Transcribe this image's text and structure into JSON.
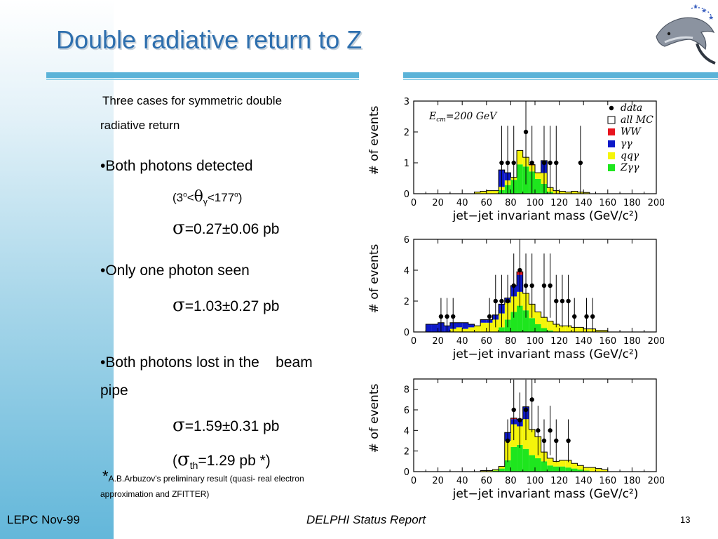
{
  "title": "Double radiative return to Z",
  "body": {
    "intro_line1": "Three cases for symmetric double",
    "intro_line2": "radiative return",
    "case1": "•Both photons detected",
    "case1_range_prefix": "(3",
    "case1_range_deg": "o",
    "case1_range_lt": "<",
    "case1_theta": "θ",
    "case1_gamma": "γ",
    "case1_range_mid": "<177",
    "case1_range_deg2": "o",
    "case1_range_suffix": ")",
    "sigma": "σ",
    "pm": "±",
    "case1_xs_a": "=0.27",
    "case1_xs_b": "0.06 pb",
    "case2": "•Only one photon seen",
    "case2_xs_a": "=1.03",
    "case2_xs_b": "0.27 pb",
    "case3_line1": "•Both photons lost in the    beam",
    "case3_line2": "pipe",
    "case3_xs_a": "=1.59",
    "case3_xs_b": "0.31 pb",
    "theory_open": "(",
    "theory_sub": "th",
    "theory_value": "=1.29 pb *)",
    "footnote_star": "*",
    "footnote_line1": "A.B.Arbuzov's preliminary result (quasi- real electron",
    "footnote_line2": "approximation and ZFITTER)"
  },
  "footer": {
    "left": "LEPC Nov-99",
    "center": "DELPHI Status Report",
    "page": "13"
  },
  "colors": {
    "title": "#2e6fae",
    "rule": "#5bb3d8",
    "ww": "#e8141e",
    "gg": "#0d19c8",
    "qqg": "#f5f50a",
    "zgg": "#1ee61e"
  },
  "chart_data": [
    {
      "type": "bar",
      "stacked": true,
      "annotation": "E_cm=200 GeV",
      "annotation_parts": {
        "main": "E",
        "sub": "cm",
        "rest": "=200 GeV"
      },
      "xlabel": "jet−jet invariant mass (GeV/c²)",
      "ylabel": "# of events",
      "xlim": [
        0,
        200
      ],
      "ylim": [
        0,
        3
      ],
      "xticks": [
        "0",
        "20",
        "40",
        "60",
        "80",
        "100",
        "120",
        "140",
        "160",
        "180",
        "200"
      ],
      "yticks": [
        "0",
        "1",
        "2",
        "3"
      ],
      "bin_width": 5,
      "x": [
        45,
        50,
        55,
        60,
        65,
        70,
        75,
        80,
        85,
        90,
        95,
        100,
        105,
        110,
        115,
        120,
        125,
        130,
        135,
        140
      ],
      "series": [
        {
          "name": "Zγγ",
          "color": "#1ee61e",
          "values": [
            0,
            0,
            0,
            0,
            0,
            0.12,
            0.28,
            0.45,
            0.95,
            0.88,
            0.72,
            0.48,
            0.32,
            0.06,
            0,
            0,
            0,
            0,
            0,
            0
          ]
        },
        {
          "name": "qqγ",
          "color": "#f5f50a",
          "values": [
            0,
            0.05,
            0.08,
            0.1,
            0.1,
            0.1,
            0.15,
            0.08,
            0.45,
            0.3,
            0.2,
            0.2,
            0.35,
            0.14,
            0.1,
            0.08,
            0.05,
            0.08,
            0.05,
            0.04
          ]
        },
        {
          "name": "γγ",
          "color": "#0d19c8",
          "values": [
            0,
            0,
            0,
            0,
            0,
            0.55,
            0.25,
            0,
            0,
            0,
            0,
            0,
            0.4,
            0,
            0,
            0,
            0,
            0,
            0,
            0
          ]
        },
        {
          "name": "WW",
          "color": "#e8141e",
          "values": [
            0,
            0,
            0,
            0,
            0,
            0,
            0,
            0,
            0,
            0,
            0.02,
            0,
            0,
            0,
            0,
            0,
            0,
            0,
            0,
            0
          ]
        }
      ],
      "data_points": [
        [
          70,
          1
        ],
        [
          75,
          1
        ],
        [
          80,
          1
        ],
        [
          90,
          2
        ],
        [
          95,
          1
        ],
        [
          105,
          1
        ],
        [
          110,
          1
        ],
        [
          115,
          1
        ],
        [
          135,
          1
        ]
      ],
      "legend": [
        {
          "label": "data",
          "marker": "dot"
        },
        {
          "label": "all MC",
          "marker": "box"
        },
        {
          "label": "WW",
          "marker": "red"
        },
        {
          "label": "γγ",
          "marker": "blue"
        },
        {
          "label": "qqγ",
          "marker": "yellow"
        },
        {
          "label": "Zγγ",
          "marker": "green"
        }
      ],
      "legend_placement": "top-right"
    },
    {
      "type": "bar",
      "stacked": true,
      "xlabel": "jet−jet invariant mass (GeV/c²)",
      "ylabel": "# of events",
      "xlim": [
        0,
        200
      ],
      "ylim": [
        0,
        6
      ],
      "xticks": [
        "0",
        "20",
        "40",
        "60",
        "80",
        "100",
        "120",
        "140",
        "160",
        "180",
        "200"
      ],
      "yticks": [
        "0",
        "2",
        "4",
        "6"
      ],
      "bin_width": 5,
      "x": [
        10,
        15,
        20,
        25,
        30,
        35,
        40,
        45,
        50,
        55,
        60,
        65,
        70,
        75,
        80,
        85,
        90,
        95,
        100,
        105,
        110,
        115,
        120,
        125,
        130,
        135,
        140,
        145,
        150,
        155
      ],
      "series": [
        {
          "name": "Zγγ",
          "color": "#1ee61e",
          "values": [
            0,
            0,
            0,
            0,
            0,
            0,
            0,
            0,
            0,
            0,
            0,
            0,
            0.3,
            0.8,
            1.3,
            1.7,
            1.4,
            0.9,
            0.5,
            0.25,
            0.1,
            0,
            0,
            0,
            0,
            0,
            0,
            0,
            0,
            0
          ]
        },
        {
          "name": "qqγ",
          "color": "#f5f50a",
          "values": [
            0,
            0,
            0,
            0,
            0.2,
            0.3,
            0.2,
            0.3,
            0.4,
            0.6,
            0.6,
            0.8,
            0.9,
            1.1,
            1.0,
            0.9,
            1.1,
            0.9,
            0.8,
            0.7,
            0.6,
            0.5,
            0.4,
            0.4,
            0.3,
            0.3,
            0.2,
            0.2,
            0.1,
            0.1
          ]
        },
        {
          "name": "γγ",
          "color": "#0d19c8",
          "values": [
            0.5,
            0.5,
            0.6,
            0.4,
            0.4,
            0.3,
            0.4,
            0.2,
            0,
            0.2,
            0.2,
            0.3,
            0.6,
            0.3,
            0.7,
            1.1,
            0,
            0,
            0,
            0,
            0,
            0,
            0,
            0,
            0,
            0,
            0,
            0,
            0,
            0
          ]
        },
        {
          "name": "WW",
          "color": "#e8141e",
          "values": [
            0,
            0,
            0,
            0,
            0,
            0,
            0,
            0,
            0,
            0,
            0,
            0,
            0,
            0,
            0,
            0.2,
            0,
            0,
            0,
            0,
            0,
            0,
            0,
            0,
            0,
            0,
            0,
            0,
            0,
            0
          ]
        }
      ],
      "data_points": [
        [
          20,
          1
        ],
        [
          25,
          1
        ],
        [
          30,
          1
        ],
        [
          60,
          1
        ],
        [
          65,
          2
        ],
        [
          70,
          2
        ],
        [
          75,
          2
        ],
        [
          80,
          3
        ],
        [
          85,
          4
        ],
        [
          90,
          3
        ],
        [
          95,
          3
        ],
        [
          105,
          3
        ],
        [
          110,
          3
        ],
        [
          115,
          2
        ],
        [
          120,
          2
        ],
        [
          125,
          2
        ],
        [
          130,
          1
        ],
        [
          140,
          1
        ],
        [
          145,
          1
        ]
      ]
    },
    {
      "type": "bar",
      "stacked": true,
      "xlabel": "jet−jet invariant mass (GeV/c²)",
      "ylabel": "# of events",
      "xlim": [
        0,
        200
      ],
      "ylim": [
        0,
        9
      ],
      "xticks": [
        "0",
        "20",
        "40",
        "60",
        "80",
        "100",
        "120",
        "140",
        "160",
        "180",
        "200"
      ],
      "yticks": [
        "0",
        "2",
        "4",
        "6",
        "8"
      ],
      "bin_width": 5,
      "x": [
        55,
        60,
        65,
        70,
        75,
        80,
        85,
        90,
        95,
        100,
        105,
        110,
        115,
        120,
        125,
        130,
        135,
        140,
        145,
        150,
        155
      ],
      "series": [
        {
          "name": "Zγγ",
          "color": "#1ee61e",
          "values": [
            0,
            0,
            0.1,
            0.3,
            1.1,
            2.4,
            2.6,
            2.2,
            1.6,
            1.3,
            1.0,
            0.6,
            0.5,
            0.5,
            0.4,
            0.3,
            0.2,
            0.1,
            0,
            0,
            0
          ]
        },
        {
          "name": "qqγ",
          "color": "#f5f50a",
          "values": [
            0.1,
            0.1,
            0.1,
            0.2,
            1.9,
            2.2,
            1.8,
            2.9,
            2.5,
            2.1,
            0.9,
            0.7,
            0.5,
            0.6,
            0.7,
            0.5,
            0.4,
            0.3,
            0.4,
            0.3,
            0.2
          ]
        },
        {
          "name": "γγ",
          "color": "#0d19c8",
          "values": [
            0,
            0,
            0,
            0,
            0.8,
            0.5,
            0.7,
            1.2,
            0,
            0,
            0,
            0,
            0,
            0,
            0,
            0,
            0,
            0,
            0,
            0,
            0
          ]
        },
        {
          "name": "WW",
          "color": "#e8141e",
          "values": [
            0,
            0,
            0,
            0,
            0,
            0.1,
            0,
            0,
            0,
            0,
            0,
            0,
            0,
            0,
            0,
            0,
            0,
            0,
            0,
            0,
            0
          ]
        }
      ],
      "data_points": [
        [
          75,
          3
        ],
        [
          80,
          6
        ],
        [
          85,
          5
        ],
        [
          90,
          6
        ],
        [
          95,
          7
        ],
        [
          100,
          4
        ],
        [
          105,
          3
        ],
        [
          110,
          4
        ],
        [
          115,
          3
        ],
        [
          125,
          3
        ]
      ]
    }
  ]
}
